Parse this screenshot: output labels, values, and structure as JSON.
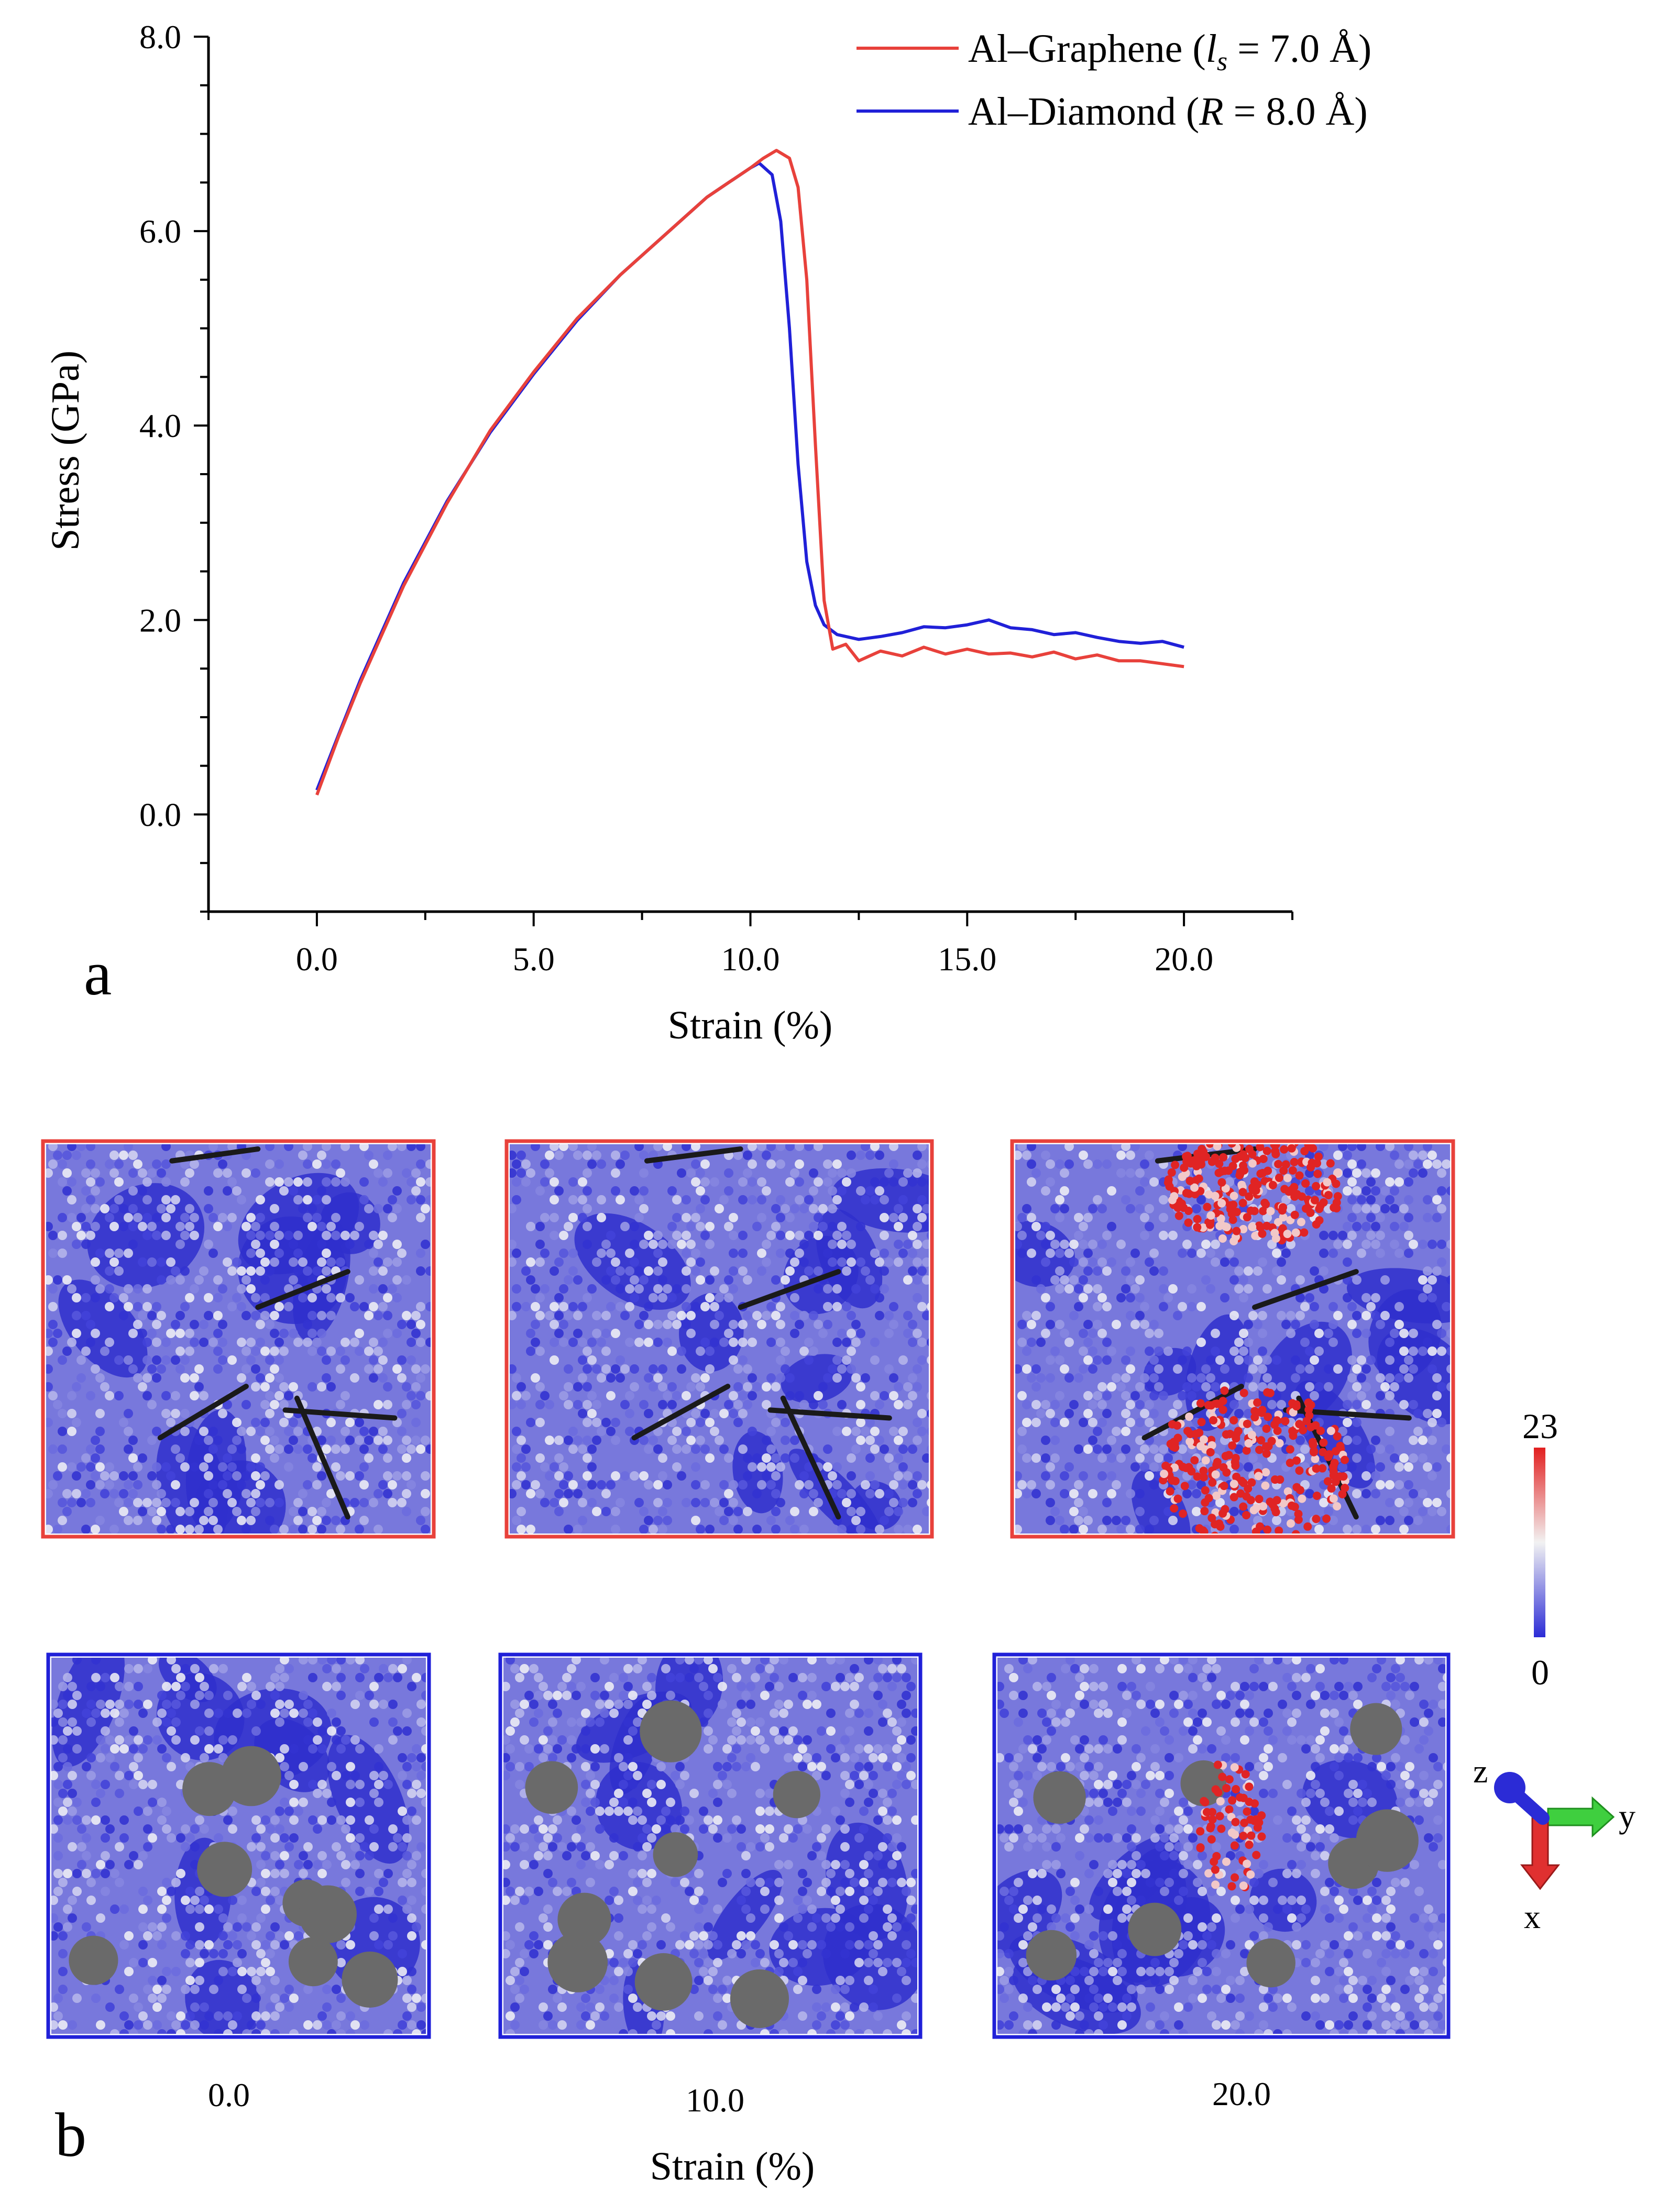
{
  "panel_a": {
    "letter": "a",
    "chart_data": {
      "type": "line",
      "xlabel": "Strain (%)",
      "ylabel": "Stress (GPa)",
      "xlim": [
        -2.5,
        22.5
      ],
      "ylim": [
        -1.0,
        8.0
      ],
      "xticks": [
        "0.0",
        "5.0",
        "10.0",
        "15.0",
        "20.0"
      ],
      "yticks": [
        "0.0",
        "2.0",
        "4.0",
        "6.0",
        "8.0"
      ],
      "grid": false,
      "legend_position": "top-right",
      "series": [
        {
          "name_prefix": "Al–Graphene (",
          "name_var": "l",
          "name_sub": "s",
          "name_suffix": " = 7.0 Å)",
          "color": "#e8413b",
          "x": [
            0.0,
            0.5,
            1.0,
            2.0,
            3.0,
            4.0,
            5.0,
            6.0,
            7.0,
            8.0,
            9.0,
            9.5,
            10.0,
            10.3,
            10.6,
            10.9,
            11.1,
            11.3,
            11.5,
            11.7,
            11.9,
            12.2,
            12.5,
            13.0,
            13.5,
            14.0,
            14.5,
            15.0,
            15.5,
            16.0,
            16.5,
            17.0,
            17.5,
            18.0,
            18.5,
            19.0,
            19.5,
            20.0
          ],
          "y": [
            0.2,
            0.8,
            1.35,
            2.35,
            3.2,
            3.95,
            4.55,
            5.1,
            5.55,
            5.95,
            6.35,
            6.5,
            6.65,
            6.75,
            6.83,
            6.75,
            6.45,
            5.5,
            3.8,
            2.2,
            1.7,
            1.75,
            1.58,
            1.68,
            1.63,
            1.72,
            1.65,
            1.7,
            1.65,
            1.66,
            1.62,
            1.67,
            1.6,
            1.64,
            1.58,
            1.58,
            1.55,
            1.52
          ]
        },
        {
          "name_prefix": "Al–Diamond (",
          "name_var": "R",
          "name_sub": "",
          "name_suffix": " = 8.0 Å)",
          "color": "#2020d8",
          "x": [
            0.0,
            0.5,
            1.0,
            2.0,
            3.0,
            4.0,
            5.0,
            6.0,
            7.0,
            8.0,
            9.0,
            9.5,
            10.0,
            10.2,
            10.5,
            10.7,
            10.9,
            11.1,
            11.3,
            11.5,
            11.7,
            12.0,
            12.5,
            13.0,
            13.5,
            14.0,
            14.5,
            15.0,
            15.5,
            16.0,
            16.5,
            17.0,
            17.5,
            18.0,
            18.5,
            19.0,
            19.5,
            20.0
          ],
          "y": [
            0.25,
            0.82,
            1.38,
            2.38,
            3.22,
            3.93,
            4.53,
            5.08,
            5.55,
            5.95,
            6.35,
            6.5,
            6.65,
            6.7,
            6.58,
            6.1,
            5.0,
            3.6,
            2.6,
            2.15,
            1.95,
            1.85,
            1.8,
            1.83,
            1.87,
            1.93,
            1.92,
            1.95,
            2.0,
            1.92,
            1.9,
            1.85,
            1.87,
            1.82,
            1.78,
            1.76,
            1.78,
            1.72
          ]
        }
      ]
    }
  },
  "panel_b": {
    "letter": "b",
    "xlabel": "Strain (%)",
    "strain_labels": [
      "0.0",
      "10.0",
      "20.0"
    ],
    "rows": [
      {
        "name": "Al–Graphene",
        "frame_color": "#e8413b"
      },
      {
        "name": "Al–Diamond",
        "frame_color": "#2020d8"
      }
    ],
    "colorbar": {
      "max_label": "23",
      "min_label": "0",
      "high_color": "#e21f1f",
      "mid_color": "#f2f2f2",
      "low_color": "#2b2bd6"
    },
    "axes_triad": {
      "z": "z",
      "y": "y",
      "x": "x"
    }
  }
}
